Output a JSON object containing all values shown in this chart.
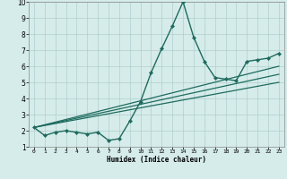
{
  "title": "",
  "xlabel": "Humidex (Indice chaleur)",
  "ylabel": "",
  "xlim": [
    -0.5,
    23.5
  ],
  "ylim": [
    1,
    10
  ],
  "xticks": [
    0,
    1,
    2,
    3,
    4,
    5,
    6,
    7,
    8,
    9,
    10,
    11,
    12,
    13,
    14,
    15,
    16,
    17,
    18,
    19,
    20,
    21,
    22,
    23
  ],
  "yticks": [
    1,
    2,
    3,
    4,
    5,
    6,
    7,
    8,
    9,
    10
  ],
  "bg_color": "#d5ecea",
  "grid_color": "#b0cece",
  "line_color": "#1e6b5e",
  "lines": [
    {
      "x": [
        0,
        1,
        2,
        3,
        4,
        5,
        6,
        7,
        8,
        9,
        10,
        11,
        12,
        13,
        14,
        15,
        16,
        17,
        18,
        19,
        20,
        21,
        22,
        23
      ],
      "y": [
        2.2,
        1.7,
        1.9,
        2.0,
        1.9,
        1.8,
        1.9,
        1.4,
        1.5,
        2.6,
        3.8,
        5.6,
        7.1,
        8.5,
        10.0,
        7.8,
        6.3,
        5.3,
        5.2,
        5.1,
        6.3,
        6.4,
        6.5,
        6.8
      ],
      "marker": "D",
      "markersize": 2.2,
      "linewidth": 1.0,
      "with_marker": true
    },
    {
      "x": [
        0,
        23
      ],
      "y": [
        2.2,
        5.0
      ],
      "marker": null,
      "markersize": 0,
      "linewidth": 0.9,
      "with_marker": false
    },
    {
      "x": [
        0,
        23
      ],
      "y": [
        2.2,
        5.5
      ],
      "marker": null,
      "markersize": 0,
      "linewidth": 0.9,
      "with_marker": false
    },
    {
      "x": [
        0,
        23
      ],
      "y": [
        2.2,
        6.0
      ],
      "marker": null,
      "markersize": 0,
      "linewidth": 0.9,
      "with_marker": false
    }
  ]
}
